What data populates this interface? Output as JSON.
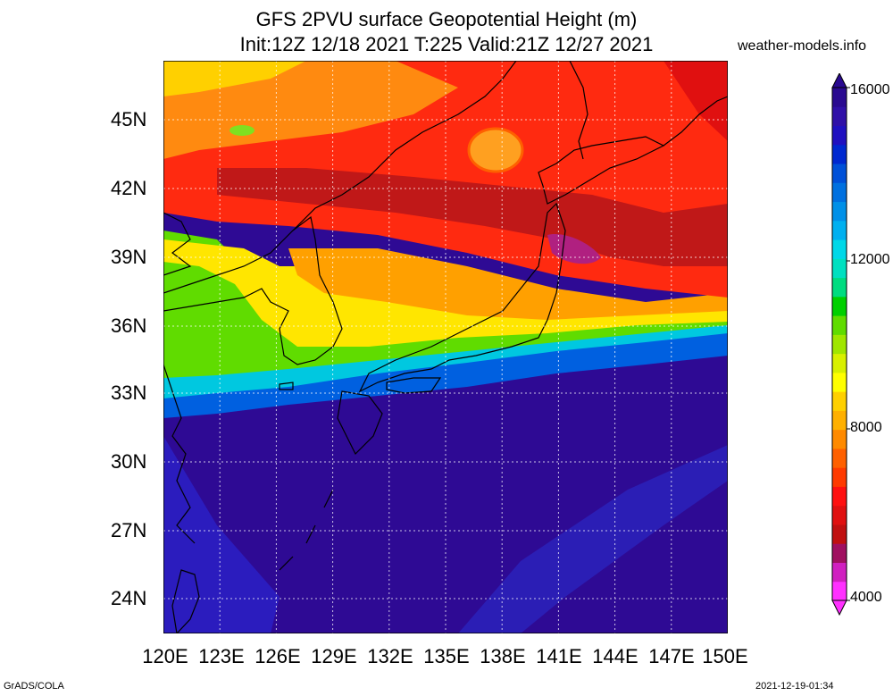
{
  "title": {
    "line1": "GFS 2PVU surface Geopotential Height (m)",
    "line2": "Init:12Z 12/18 2021 T:225 Valid:21Z 12/27 2021"
  },
  "site": "weather-models.info",
  "axes": {
    "lat_labels": [
      "45N",
      "42N",
      "39N",
      "36N",
      "33N",
      "30N",
      "27N",
      "24N"
    ],
    "lon_labels": [
      "120E",
      "123E",
      "126E",
      "129E",
      "132E",
      "135E",
      "138E",
      "141E",
      "144E",
      "147E",
      "150E"
    ],
    "lat_range": [
      22.5,
      47.5
    ],
    "lon_range": [
      120,
      150
    ],
    "grid": true
  },
  "colorbar": {
    "labels": [
      "16000",
      "12000",
      "8000",
      "4000"
    ],
    "colors": [
      "#ff30ff",
      "#d020c0",
      "#a01060",
      "#c01010",
      "#e01010",
      "#ff1010",
      "#ff3a00",
      "#ff6000",
      "#ff8a00",
      "#ffb000",
      "#ffd000",
      "#ffff00",
      "#d8f000",
      "#a0e600",
      "#60dc00",
      "#00d000",
      "#00dc80",
      "#00e0c0",
      "#00d8e8",
      "#00b0f0",
      "#0090e8",
      "#0070e0",
      "#0050d8",
      "#0028d0",
      "#2010c0",
      "#3010a8",
      "#2a0a90"
    ]
  },
  "footer": {
    "left": "GrADS/COLA",
    "right": "2021-12-19-01:34"
  }
}
